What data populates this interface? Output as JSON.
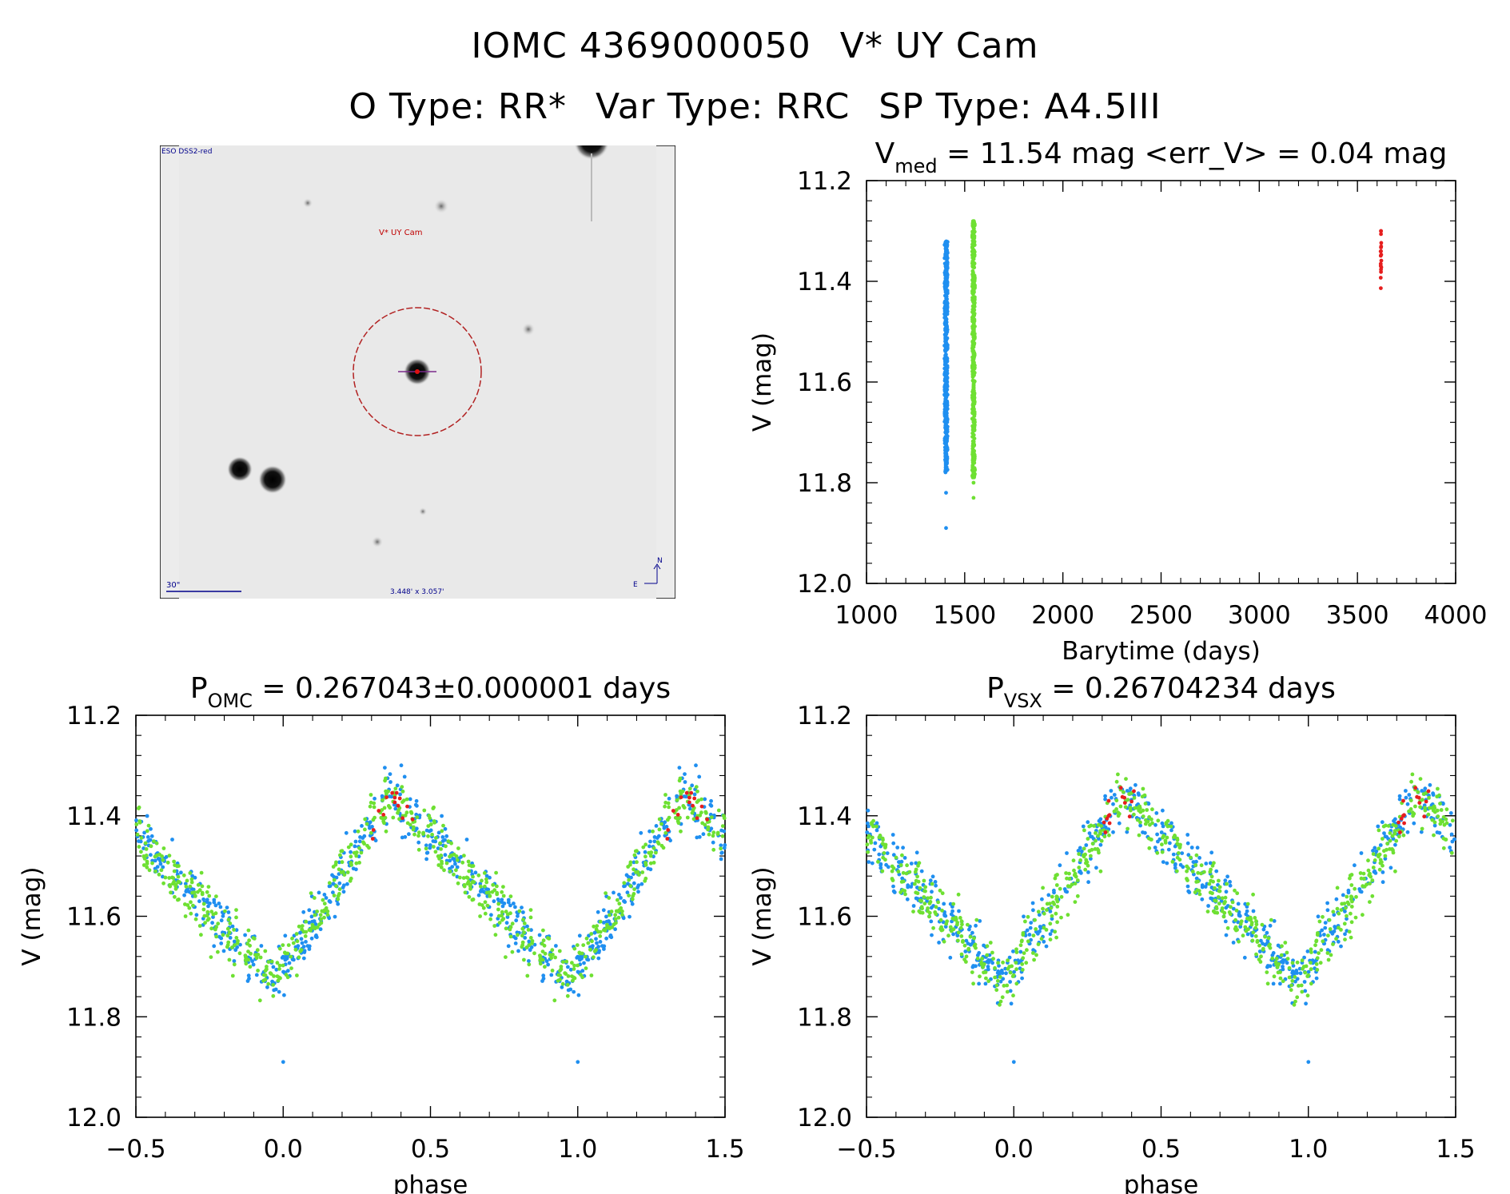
{
  "header": {
    "object_id": "IOMC 4369000050",
    "star_name": "V* UY Cam",
    "o_type": "O Type: RR*",
    "var_type": "Var Type: RRC",
    "sp_type": "SP Type: A4.5III"
  },
  "image_panel": {
    "survey_label": "ESO DSS2-red",
    "target_label": "V* UY Cam",
    "scale_label": "30\"",
    "fov_label": "3.448' x 3.057'",
    "compass_n": "N",
    "compass_e": "E"
  },
  "colors": {
    "series_1": "#1f8ff0",
    "series_2": "#6ee032",
    "series_3": "#e61e1e",
    "circle": "#b22222",
    "label_red": "#c00000",
    "label_blue": "#00008b"
  },
  "chart_data": [
    {
      "id": "lightcurve",
      "type": "scatter",
      "title_main": "V",
      "title_sub": "med",
      "title_rest": " = 11.54 mag <err_V> = 0.04 mag",
      "xlabel": "Barytime (days)",
      "ylabel": "V (mag)",
      "xlim": [
        1000,
        4000
      ],
      "ylim": [
        12.0,
        11.2
      ],
      "xticks": [
        "1000",
        "1500",
        "2000",
        "2500",
        "3000",
        "3500",
        "4000"
      ],
      "yticks": [
        "11.2",
        "11.4",
        "11.6",
        "11.8",
        "12.0"
      ],
      "series": [
        {
          "name": "series_1",
          "color": "#1f8ff0",
          "x_center": 1405,
          "x_spread": 14,
          "v_min": 11.32,
          "v_max": 11.78,
          "outliers": [
            11.82,
            11.89
          ],
          "count": 420
        },
        {
          "name": "series_2",
          "color": "#6ee032",
          "x_center": 1545,
          "x_spread": 12,
          "v_min": 11.28,
          "v_max": 11.79,
          "outliers": [
            11.8,
            11.83
          ],
          "count": 420
        },
        {
          "name": "series_3",
          "color": "#e61e1e",
          "x_center": 3620,
          "x_spread": 3,
          "v_min": 11.29,
          "v_max": 11.43,
          "outliers": [],
          "count": 18
        }
      ]
    },
    {
      "id": "phase_omc",
      "type": "scatter",
      "title_main": "P",
      "title_sub": "OMC",
      "title_rest": " = 0.267043±0.000001 days",
      "xlabel": "phase",
      "ylabel": "V (mag)",
      "xlim": [
        -0.5,
        1.5
      ],
      "ylim": [
        12.0,
        11.2
      ],
      "xticks": [
        "−0.5",
        "0.0",
        "0.5",
        "1.0",
        "1.5"
      ],
      "yticks": [
        "11.2",
        "11.4",
        "11.6",
        "11.8",
        "12.0"
      ],
      "curve": {
        "max_mag": 11.36,
        "max_phase": 0.37,
        "min_mag": 11.73,
        "min_phase": 0.97
      },
      "series": [
        {
          "name": "series_1",
          "color": "#1f8ff0",
          "count": 340
        },
        {
          "name": "series_2",
          "color": "#6ee032",
          "count": 340
        },
        {
          "name": "series_3",
          "color": "#e61e1e",
          "count": 14
        }
      ]
    },
    {
      "id": "phase_vsx",
      "type": "scatter",
      "title_main": "P",
      "title_sub": "VSX",
      "title_rest": " = 0.26704234 days",
      "xlabel": "phase",
      "ylabel": "V (mag)",
      "xlim": [
        -0.5,
        1.5
      ],
      "ylim": [
        12.0,
        11.2
      ],
      "xticks": [
        "−0.5",
        "0.0",
        "0.5",
        "1.0",
        "1.5"
      ],
      "yticks": [
        "11.2",
        "11.4",
        "11.6",
        "11.8",
        "12.0"
      ],
      "curve": {
        "max_mag": 11.36,
        "max_phase": 0.37,
        "min_mag": 11.73,
        "min_phase": 0.97
      },
      "series": [
        {
          "name": "series_1",
          "color": "#1f8ff0",
          "count": 340
        },
        {
          "name": "series_2",
          "color": "#6ee032",
          "count": 340
        },
        {
          "name": "series_3",
          "color": "#e61e1e",
          "count": 14
        }
      ]
    }
  ]
}
